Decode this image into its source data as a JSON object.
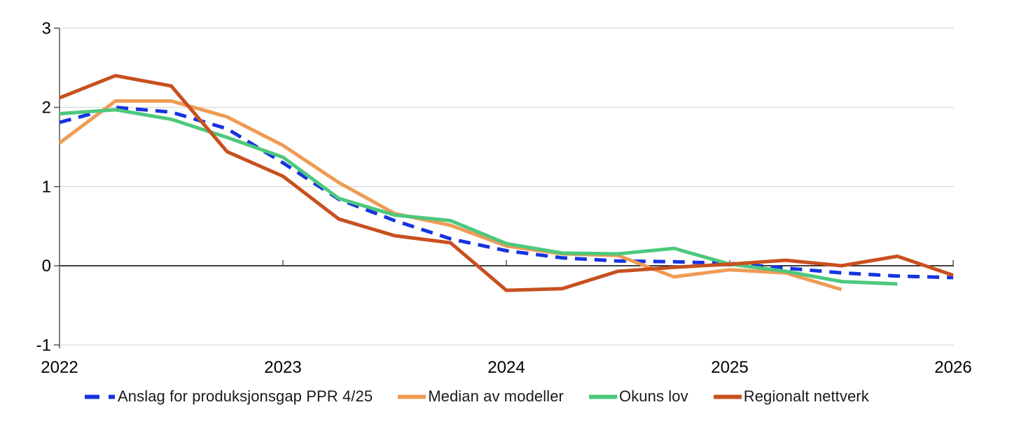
{
  "chart_data": {
    "type": "line",
    "title": "",
    "xlabel": "",
    "ylabel": "",
    "x_axis": {
      "min": 2022,
      "max": 2026,
      "ticks": [
        2022,
        2023,
        2024,
        2025,
        2026
      ]
    },
    "y_axis": {
      "min": -1,
      "max": 3,
      "ticks": [
        3,
        2,
        1,
        0,
        -1
      ]
    },
    "grid": "horizontal",
    "legend_position": "bottom",
    "colors": {
      "grid": "#D9D9D9",
      "zero_line": "#000000",
      "axis": "#4A4A4A",
      "text": "#000000",
      "background": "#FFFFFF"
    },
    "series": [
      {
        "name": "Anslag for produksjonsgap PPR 4/25",
        "color": "#1733E0",
        "style": "dashed",
        "x": [
          2022,
          2022.25,
          2022.5,
          2022.75,
          2023,
          2023.25,
          2023.5,
          2023.75,
          2024,
          2024.25,
          2024.5,
          2024.75,
          2025,
          2025.25,
          2025.5,
          2025.75,
          2026
        ],
        "values": [
          1.81,
          2.0,
          1.94,
          1.73,
          1.3,
          0.84,
          0.57,
          0.34,
          0.19,
          0.1,
          0.06,
          0.05,
          0.03,
          -0.03,
          -0.09,
          -0.13,
          -0.15
        ]
      },
      {
        "name": "Median av modeller",
        "color": "#EF9B55",
        "style": "solid",
        "x": [
          2022,
          2022.25,
          2022.5,
          2022.75,
          2023,
          2023.25,
          2023.5,
          2023.75,
          2024,
          2024.25,
          2024.5,
          2024.75,
          2025,
          2025.25,
          2025.5
        ],
        "values": [
          1.55,
          2.08,
          2.08,
          1.88,
          1.52,
          1.05,
          0.66,
          0.51,
          0.25,
          0.15,
          0.13,
          -0.14,
          -0.05,
          -0.09,
          -0.3
        ]
      },
      {
        "name": "Okuns lov",
        "color": "#4DC87D",
        "style": "solid",
        "x": [
          2022,
          2022.25,
          2022.5,
          2022.75,
          2023,
          2023.25,
          2023.5,
          2023.75,
          2024,
          2024.25,
          2024.5,
          2024.75,
          2025,
          2025.25,
          2025.5,
          2025.75
        ],
        "values": [
          1.92,
          1.97,
          1.85,
          1.62,
          1.37,
          0.85,
          0.64,
          0.57,
          0.28,
          0.16,
          0.15,
          0.22,
          0.02,
          -0.07,
          -0.2,
          -0.23
        ]
      },
      {
        "name": "Regionalt nettverk",
        "color": "#C8501E",
        "style": "solid",
        "x": [
          2022,
          2022.25,
          2022.5,
          2022.75,
          2023,
          2023.25,
          2023.5,
          2023.75,
          2024,
          2024.25,
          2024.5,
          2024.75,
          2025,
          2025.25,
          2025.5,
          2025.75,
          2026
        ],
        "values": [
          2.12,
          2.4,
          2.27,
          1.44,
          1.13,
          0.59,
          0.38,
          0.29,
          -0.31,
          -0.29,
          -0.07,
          -0.02,
          0.02,
          0.07,
          0.0,
          0.12,
          -0.12
        ]
      }
    ]
  }
}
